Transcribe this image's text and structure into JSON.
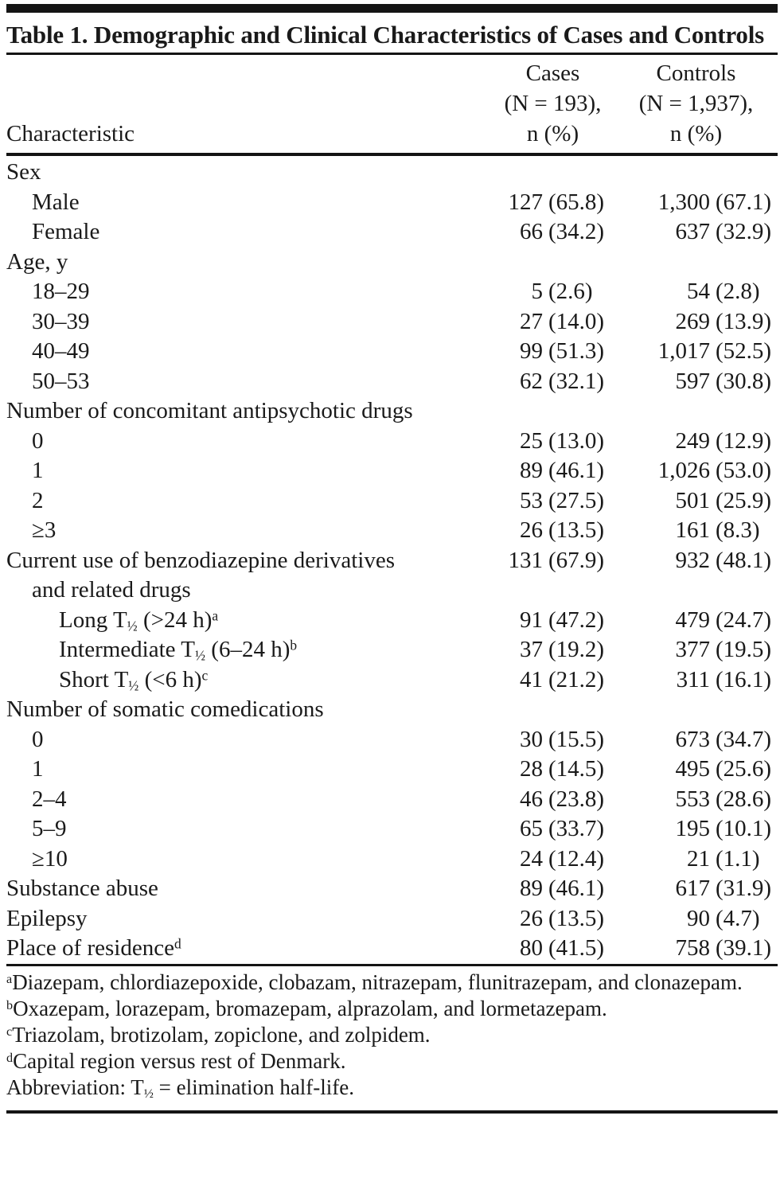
{
  "colors": {
    "text": "#1a1a1a",
    "rule": "#141414",
    "background": "#ffffff"
  },
  "table": {
    "title": "Table 1. Demographic and Clinical Characteristics of Cases and Controls",
    "header": {
      "characteristic": "Characteristic",
      "cases_lines": [
        "Cases",
        "(N = 193),",
        "n (%)"
      ],
      "controls_lines": [
        "Controls",
        "(N = 1,937),",
        "n (%)"
      ]
    },
    "rows": [
      {
        "label": "Sex",
        "indent": 0,
        "cases_n": "",
        "cases_pct": "",
        "controls_n": "",
        "controls_pct": ""
      },
      {
        "label": "Male",
        "indent": 1,
        "cases_n": "127",
        "cases_pct": "(65.8)",
        "controls_n": "1,300",
        "controls_pct": "(67.1)"
      },
      {
        "label": "Female",
        "indent": 1,
        "cases_n": "66",
        "cases_pct": "(34.2)",
        "controls_n": "637",
        "controls_pct": "(32.9)"
      },
      {
        "label": "Age, y",
        "indent": 0,
        "cases_n": "",
        "cases_pct": "",
        "controls_n": "",
        "controls_pct": ""
      },
      {
        "label": "18–29",
        "indent": 1,
        "cases_n": "5",
        "cases_pct": "(2.6)",
        "controls_n": "54",
        "controls_pct": "(2.8)"
      },
      {
        "label": "30–39",
        "indent": 1,
        "cases_n": "27",
        "cases_pct": "(14.0)",
        "controls_n": "269",
        "controls_pct": "(13.9)"
      },
      {
        "label": "40–49",
        "indent": 1,
        "cases_n": "99",
        "cases_pct": "(51.3)",
        "controls_n": "1,017",
        "controls_pct": "(52.5)"
      },
      {
        "label": "50–53",
        "indent": 1,
        "cases_n": "62",
        "cases_pct": "(32.1)",
        "controls_n": "597",
        "controls_pct": "(30.8)"
      },
      {
        "label": "Number of concomitant antipsychotic drugs",
        "indent": 0,
        "cases_n": "",
        "cases_pct": "",
        "controls_n": "",
        "controls_pct": ""
      },
      {
        "label": "0",
        "indent": 1,
        "cases_n": "25",
        "cases_pct": "(13.0)",
        "controls_n": "249",
        "controls_pct": "(12.9)"
      },
      {
        "label": "1",
        "indent": 1,
        "cases_n": "89",
        "cases_pct": "(46.1)",
        "controls_n": "1,026",
        "controls_pct": "(53.0)"
      },
      {
        "label": "2",
        "indent": 1,
        "cases_n": "53",
        "cases_pct": "(27.5)",
        "controls_n": "501",
        "controls_pct": "(25.9)"
      },
      {
        "label": "≥3",
        "indent": 1,
        "cases_n": "26",
        "cases_pct": "(13.5)",
        "controls_n": "161",
        "controls_pct": "(8.3)"
      },
      {
        "label": "Current use of benzodiazepine derivatives",
        "indent": 0,
        "cases_n": "131",
        "cases_pct": "(67.9)",
        "controls_n": "932",
        "controls_pct": "(48.1)"
      },
      {
        "label": "and related drugs",
        "indent": 1,
        "cases_n": "",
        "cases_pct": "",
        "controls_n": "",
        "controls_pct": ""
      },
      {
        "label": "Long T_{½} (>24 h)^{a}",
        "indent": 2,
        "cases_n": "91",
        "cases_pct": "(47.2)",
        "controls_n": "479",
        "controls_pct": "(24.7)"
      },
      {
        "label": "Intermediate T_{½} (6–24 h)^{b}",
        "indent": 2,
        "cases_n": "37",
        "cases_pct": "(19.2)",
        "controls_n": "377",
        "controls_pct": "(19.5)"
      },
      {
        "label": "Short T_{½} (<6 h)^{c}",
        "indent": 2,
        "cases_n": "41",
        "cases_pct": "(21.2)",
        "controls_n": "311",
        "controls_pct": "(16.1)"
      },
      {
        "label": "Number of somatic comedications",
        "indent": 0,
        "cases_n": "",
        "cases_pct": "",
        "controls_n": "",
        "controls_pct": ""
      },
      {
        "label": "0",
        "indent": 1,
        "cases_n": "30",
        "cases_pct": "(15.5)",
        "controls_n": "673",
        "controls_pct": "(34.7)"
      },
      {
        "label": "1",
        "indent": 1,
        "cases_n": "28",
        "cases_pct": "(14.5)",
        "controls_n": "495",
        "controls_pct": "(25.6)"
      },
      {
        "label": "2–4",
        "indent": 1,
        "cases_n": "46",
        "cases_pct": "(23.8)",
        "controls_n": "553",
        "controls_pct": "(28.6)"
      },
      {
        "label": "5–9",
        "indent": 1,
        "cases_n": "65",
        "cases_pct": "(33.7)",
        "controls_n": "195",
        "controls_pct": "(10.1)"
      },
      {
        "label": "≥10",
        "indent": 1,
        "cases_n": "24",
        "cases_pct": "(12.4)",
        "controls_n": "21",
        "controls_pct": "(1.1)"
      },
      {
        "label": "Substance abuse",
        "indent": 0,
        "cases_n": "89",
        "cases_pct": "(46.1)",
        "controls_n": "617",
        "controls_pct": "(31.9)"
      },
      {
        "label": "Epilepsy",
        "indent": 0,
        "cases_n": "26",
        "cases_pct": "(13.5)",
        "controls_n": "90",
        "controls_pct": "(4.7)"
      },
      {
        "label": "Place of residence^{d}",
        "indent": 0,
        "cases_n": "80",
        "cases_pct": "(41.5)",
        "controls_n": "758",
        "controls_pct": "(39.1)"
      }
    ],
    "footnotes": [
      "^{a}Diazepam, chlordiazepoxide, clobazam, nitrazepam, flunitrazepam, and clonazepam.",
      "^{b}Oxazepam, lorazepam, bromazepam, alprazolam, and lormetazepam.",
      "^{c}Triazolam, brotizolam, zopiclone, and zolpidem.",
      "^{d}Capital region versus rest of Denmark.",
      "Abbreviation: T_{½} = elimination half-life."
    ]
  }
}
